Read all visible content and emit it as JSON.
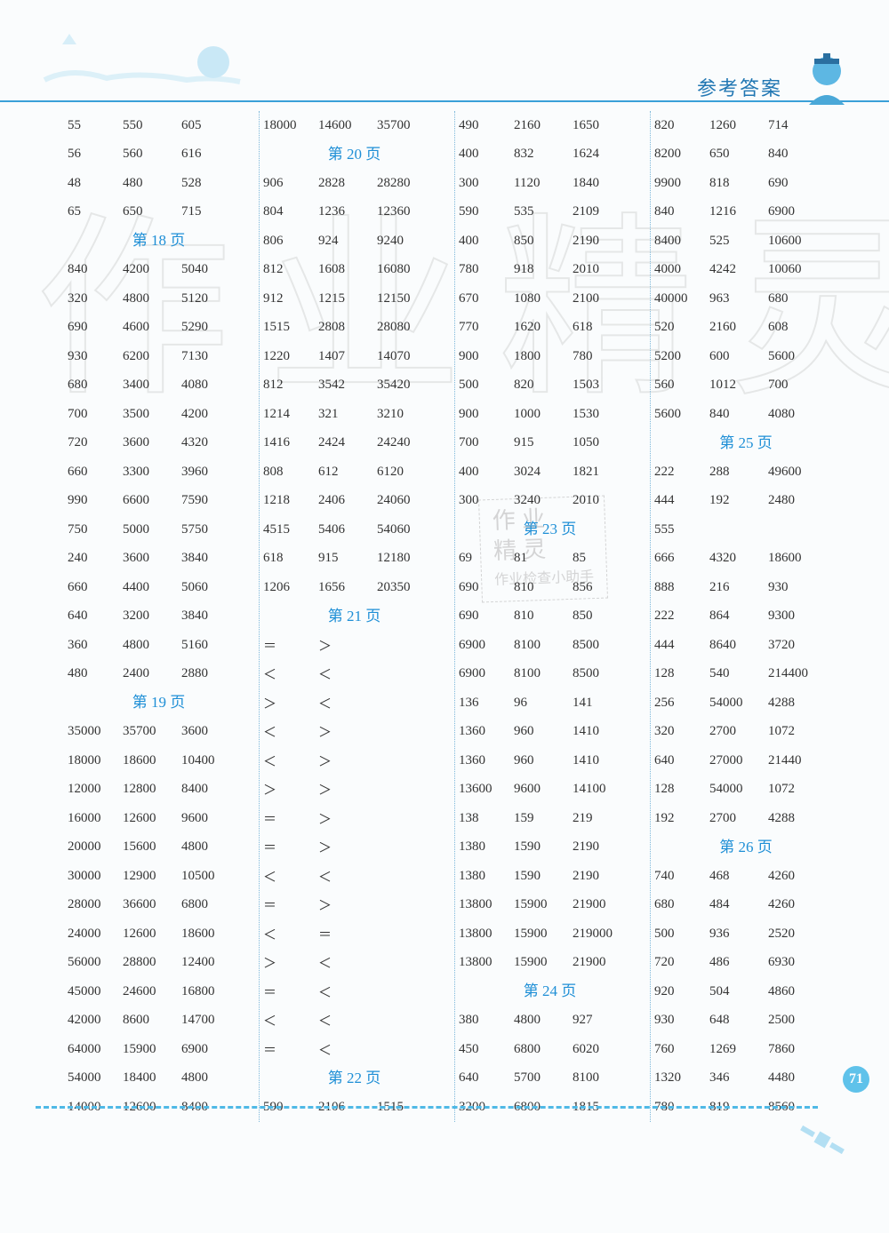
{
  "header_title": "参考答案",
  "page_number": "71",
  "watermark_big": "作业精灵",
  "watermark_small_l1": "作 业",
  "watermark_small_l2": "精 灵",
  "watermark_small_l3": "作业检查小助手",
  "accent_color": "#1f8fd6",
  "columns": [
    [
      {
        "t": "row",
        "v": [
          "55",
          "550",
          "605"
        ]
      },
      {
        "t": "row",
        "v": [
          "56",
          "560",
          "616"
        ]
      },
      {
        "t": "row",
        "v": [
          "48",
          "480",
          "528"
        ]
      },
      {
        "t": "row",
        "v": [
          "65",
          "650",
          "715"
        ]
      },
      {
        "t": "hdr",
        "v": "第 18 页"
      },
      {
        "t": "row",
        "v": [
          "840",
          "4200",
          "5040"
        ]
      },
      {
        "t": "row",
        "v": [
          "320",
          "4800",
          "5120"
        ]
      },
      {
        "t": "row",
        "v": [
          "690",
          "4600",
          "5290"
        ]
      },
      {
        "t": "row",
        "v": [
          "930",
          "6200",
          "7130"
        ]
      },
      {
        "t": "row",
        "v": [
          "680",
          "3400",
          "4080"
        ]
      },
      {
        "t": "row",
        "v": [
          "700",
          "3500",
          "4200"
        ]
      },
      {
        "t": "row",
        "v": [
          "720",
          "3600",
          "4320"
        ]
      },
      {
        "t": "row",
        "v": [
          "660",
          "3300",
          "3960"
        ]
      },
      {
        "t": "row",
        "v": [
          "990",
          "6600",
          "7590"
        ]
      },
      {
        "t": "row",
        "v": [
          "750",
          "5000",
          "5750"
        ]
      },
      {
        "t": "row",
        "v": [
          "240",
          "3600",
          "3840"
        ]
      },
      {
        "t": "row",
        "v": [
          "660",
          "4400",
          "5060"
        ]
      },
      {
        "t": "row",
        "v": [
          "640",
          "3200",
          "3840"
        ]
      },
      {
        "t": "row",
        "v": [
          "360",
          "4800",
          "5160"
        ]
      },
      {
        "t": "row",
        "v": [
          "480",
          "2400",
          "2880"
        ]
      },
      {
        "t": "hdr",
        "v": "第 19 页"
      },
      {
        "t": "row",
        "v": [
          "35000",
          "35700",
          "3600"
        ]
      },
      {
        "t": "row",
        "v": [
          "18000",
          "18600",
          "10400"
        ]
      },
      {
        "t": "row",
        "v": [
          "12000",
          "12800",
          "8400"
        ]
      },
      {
        "t": "row",
        "v": [
          "16000",
          "12600",
          "9600"
        ]
      },
      {
        "t": "row",
        "v": [
          "20000",
          "15600",
          "4800"
        ]
      },
      {
        "t": "row",
        "v": [
          "30000",
          "12900",
          "10500"
        ]
      },
      {
        "t": "row",
        "v": [
          "28000",
          "36600",
          "6800"
        ]
      },
      {
        "t": "row",
        "v": [
          "24000",
          "12600",
          "18600"
        ]
      },
      {
        "t": "row",
        "v": [
          "56000",
          "28800",
          "12400"
        ]
      },
      {
        "t": "row",
        "v": [
          "45000",
          "24600",
          "16800"
        ]
      },
      {
        "t": "row",
        "v": [
          "42000",
          "8600",
          "14700"
        ]
      },
      {
        "t": "row",
        "v": [
          "64000",
          "15900",
          "6900"
        ]
      },
      {
        "t": "row",
        "v": [
          "54000",
          "18400",
          "4800"
        ]
      },
      {
        "t": "row",
        "v": [
          "14000",
          "12600",
          "8400"
        ]
      }
    ],
    [
      {
        "t": "row",
        "v": [
          "18000",
          "14600",
          "35700"
        ]
      },
      {
        "t": "hdr",
        "v": "第 20 页"
      },
      {
        "t": "row",
        "v": [
          "906",
          "2828",
          "28280"
        ]
      },
      {
        "t": "row",
        "v": [
          "804",
          "1236",
          "12360"
        ]
      },
      {
        "t": "row",
        "v": [
          "806",
          "924",
          "9240"
        ]
      },
      {
        "t": "row",
        "v": [
          "812",
          "1608",
          "16080"
        ]
      },
      {
        "t": "row",
        "v": [
          "912",
          "1215",
          "12150"
        ]
      },
      {
        "t": "row",
        "v": [
          "1515",
          "2808",
          "28080"
        ]
      },
      {
        "t": "row",
        "v": [
          "1220",
          "1407",
          "14070"
        ]
      },
      {
        "t": "row",
        "v": [
          "812",
          "3542",
          "35420"
        ]
      },
      {
        "t": "row",
        "v": [
          "1214",
          "321",
          "3210"
        ]
      },
      {
        "t": "row",
        "v": [
          "1416",
          "2424",
          "24240"
        ]
      },
      {
        "t": "row",
        "v": [
          "808",
          "612",
          "6120"
        ]
      },
      {
        "t": "row",
        "v": [
          "1218",
          "2406",
          "24060"
        ]
      },
      {
        "t": "row",
        "v": [
          "4515",
          "5406",
          "54060"
        ]
      },
      {
        "t": "row",
        "v": [
          "618",
          "915",
          "12180"
        ]
      },
      {
        "t": "row",
        "v": [
          "1206",
          "1656",
          "20350"
        ]
      },
      {
        "t": "hdr",
        "v": "第 21 页"
      },
      {
        "t": "row",
        "v": [
          "＝",
          "＞",
          ""
        ]
      },
      {
        "t": "row",
        "v": [
          "＜",
          "＜",
          ""
        ]
      },
      {
        "t": "row",
        "v": [
          "＞",
          "＜",
          ""
        ]
      },
      {
        "t": "row",
        "v": [
          "＜",
          "＞",
          ""
        ]
      },
      {
        "t": "row",
        "v": [
          "＜",
          "＞",
          ""
        ]
      },
      {
        "t": "row",
        "v": [
          "＞",
          "＞",
          ""
        ]
      },
      {
        "t": "row",
        "v": [
          "＝",
          "＞",
          ""
        ]
      },
      {
        "t": "row",
        "v": [
          "＝",
          "＞",
          ""
        ]
      },
      {
        "t": "row",
        "v": [
          "＜",
          "＜",
          ""
        ]
      },
      {
        "t": "row",
        "v": [
          "＝",
          "＞",
          ""
        ]
      },
      {
        "t": "row",
        "v": [
          "＜",
          "＝",
          ""
        ]
      },
      {
        "t": "row",
        "v": [
          "＞",
          "＜",
          ""
        ]
      },
      {
        "t": "row",
        "v": [
          "＝",
          "＜",
          ""
        ]
      },
      {
        "t": "row",
        "v": [
          "＜",
          "＜",
          ""
        ]
      },
      {
        "t": "row",
        "v": [
          "＝",
          "＜",
          ""
        ]
      },
      {
        "t": "hdr",
        "v": "第 22 页"
      },
      {
        "t": "row",
        "v": [
          "590",
          "2106",
          "1515"
        ]
      }
    ],
    [
      {
        "t": "row",
        "v": [
          "490",
          "2160",
          "1650"
        ]
      },
      {
        "t": "row",
        "v": [
          "400",
          "832",
          "1624"
        ]
      },
      {
        "t": "row",
        "v": [
          "300",
          "1120",
          "1840"
        ]
      },
      {
        "t": "row",
        "v": [
          "590",
          "535",
          "2109"
        ]
      },
      {
        "t": "row",
        "v": [
          "400",
          "850",
          "2190"
        ]
      },
      {
        "t": "row",
        "v": [
          "780",
          "918",
          "2010"
        ]
      },
      {
        "t": "row",
        "v": [
          "670",
          "1080",
          "2100"
        ]
      },
      {
        "t": "row",
        "v": [
          "770",
          "1620",
          "618"
        ]
      },
      {
        "t": "row",
        "v": [
          "900",
          "1800",
          "780"
        ]
      },
      {
        "t": "row",
        "v": [
          "500",
          "820",
          "1503"
        ]
      },
      {
        "t": "row",
        "v": [
          "900",
          "1000",
          "1530"
        ]
      },
      {
        "t": "row",
        "v": [
          "700",
          "915",
          "1050"
        ]
      },
      {
        "t": "row",
        "v": [
          "400",
          "3024",
          "1821"
        ]
      },
      {
        "t": "row",
        "v": [
          "300",
          "3240",
          "2010"
        ]
      },
      {
        "t": "hdr",
        "v": "第 23 页"
      },
      {
        "t": "row",
        "v": [
          "69",
          "81",
          "85"
        ]
      },
      {
        "t": "row",
        "v": [
          "690",
          "810",
          "856"
        ]
      },
      {
        "t": "row",
        "v": [
          "690",
          "810",
          "850"
        ]
      },
      {
        "t": "row",
        "v": [
          "6900",
          "8100",
          "8500"
        ]
      },
      {
        "t": "row",
        "v": [
          "6900",
          "8100",
          "8500"
        ]
      },
      {
        "t": "row",
        "v": [
          "136",
          "96",
          "141"
        ]
      },
      {
        "t": "row",
        "v": [
          "1360",
          "960",
          "1410"
        ]
      },
      {
        "t": "row",
        "v": [
          "1360",
          "960",
          "1410"
        ]
      },
      {
        "t": "row",
        "v": [
          "13600",
          "9600",
          "14100"
        ]
      },
      {
        "t": "row",
        "v": [
          "138",
          "159",
          "219"
        ]
      },
      {
        "t": "row",
        "v": [
          "1380",
          "1590",
          "2190"
        ]
      },
      {
        "t": "row",
        "v": [
          "1380",
          "1590",
          "2190"
        ]
      },
      {
        "t": "row",
        "v": [
          "13800",
          "15900",
          "21900"
        ]
      },
      {
        "t": "row",
        "v": [
          "13800",
          "15900",
          "219000"
        ]
      },
      {
        "t": "row",
        "v": [
          "13800",
          "15900",
          "21900"
        ]
      },
      {
        "t": "hdr",
        "v": "第 24 页"
      },
      {
        "t": "row",
        "v": [
          "380",
          "4800",
          "927"
        ]
      },
      {
        "t": "row",
        "v": [
          "450",
          "6800",
          "6020"
        ]
      },
      {
        "t": "row",
        "v": [
          "640",
          "5700",
          "8100"
        ]
      },
      {
        "t": "row",
        "v": [
          "3200",
          "6800",
          "1815"
        ]
      }
    ],
    [
      {
        "t": "row",
        "v": [
          "820",
          "1260",
          "714"
        ]
      },
      {
        "t": "row",
        "v": [
          "8200",
          "650",
          "840"
        ]
      },
      {
        "t": "row",
        "v": [
          "9900",
          "818",
          "690"
        ]
      },
      {
        "t": "row",
        "v": [
          "840",
          "1216",
          "6900"
        ]
      },
      {
        "t": "row",
        "v": [
          "8400",
          "525",
          "10600"
        ]
      },
      {
        "t": "row",
        "v": [
          "4000",
          "4242",
          "10060"
        ]
      },
      {
        "t": "row",
        "v": [
          "40000",
          "963",
          "680"
        ]
      },
      {
        "t": "row",
        "v": [
          "520",
          "2160",
          "608"
        ]
      },
      {
        "t": "row",
        "v": [
          "5200",
          "600",
          "5600"
        ]
      },
      {
        "t": "row",
        "v": [
          "560",
          "1012",
          "700"
        ]
      },
      {
        "t": "row",
        "v": [
          "5600",
          "840",
          "4080"
        ]
      },
      {
        "t": "hdr",
        "v": "第 25 页"
      },
      {
        "t": "row",
        "v": [
          "222",
          "288",
          "49600"
        ]
      },
      {
        "t": "row",
        "v": [
          "444",
          "192",
          "2480"
        ]
      },
      {
        "t": "row",
        "v": [
          "555",
          "",
          ""
        ]
      },
      {
        "t": "row",
        "v": [
          "666",
          "4320",
          "18600"
        ]
      },
      {
        "t": "row",
        "v": [
          "888",
          "216",
          "930"
        ]
      },
      {
        "t": "row",
        "v": [
          "222",
          "864",
          "9300"
        ]
      },
      {
        "t": "row",
        "v": [
          "444",
          "8640",
          "3720"
        ]
      },
      {
        "t": "row",
        "v": [
          "128",
          "540",
          "214400"
        ]
      },
      {
        "t": "row",
        "v": [
          "256",
          "54000",
          "4288"
        ]
      },
      {
        "t": "row",
        "v": [
          "320",
          "2700",
          "1072"
        ]
      },
      {
        "t": "row",
        "v": [
          "640",
          "27000",
          "21440"
        ]
      },
      {
        "t": "row",
        "v": [
          "128",
          "54000",
          "1072"
        ]
      },
      {
        "t": "row",
        "v": [
          "192",
          "2700",
          "4288"
        ]
      },
      {
        "t": "hdr",
        "v": "第 26 页"
      },
      {
        "t": "row",
        "v": [
          "740",
          "468",
          "4260"
        ]
      },
      {
        "t": "row",
        "v": [
          "680",
          "484",
          "4260"
        ]
      },
      {
        "t": "row",
        "v": [
          "500",
          "936",
          "2520"
        ]
      },
      {
        "t": "row",
        "v": [
          "720",
          "486",
          "6930"
        ]
      },
      {
        "t": "row",
        "v": [
          "920",
          "504",
          "4860"
        ]
      },
      {
        "t": "row",
        "v": [
          "930",
          "648",
          "2500"
        ]
      },
      {
        "t": "row",
        "v": [
          "760",
          "1269",
          "7860"
        ]
      },
      {
        "t": "row",
        "v": [
          "1320",
          "346",
          "4480"
        ]
      },
      {
        "t": "row",
        "v": [
          "780",
          "819",
          "8560"
        ]
      }
    ]
  ]
}
